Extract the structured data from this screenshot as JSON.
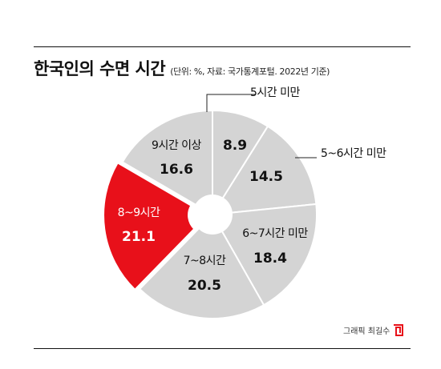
{
  "title": "한국인의 수면 시간",
  "subtitle": "(단위: %, 자료: 국가통계포털. 2022년 기준)",
  "credit": "그래픽 최길수",
  "colors": {
    "slice_default": "#d4d4d4",
    "slice_highlight": "#e8101a",
    "separator": "#ffffff",
    "leader": "#222222",
    "logo": "#e8101a"
  },
  "chart_data": {
    "type": "pie",
    "style": "donut",
    "start": "12 o'clock",
    "direction": "clockwise",
    "unit": "%",
    "slices": [
      {
        "label": "5시간 미만",
        "value": 8.9,
        "highlight": false,
        "label_position": "outside"
      },
      {
        "label": "5~6시간 미만",
        "value": 14.5,
        "highlight": false,
        "label_position": "outside"
      },
      {
        "label": "6~7시간 미만",
        "value": 18.4,
        "highlight": false,
        "label_position": "inside"
      },
      {
        "label": "7~8시간",
        "value": 20.5,
        "highlight": false,
        "label_position": "inside"
      },
      {
        "label": "8~9시간",
        "value": 21.1,
        "highlight": true,
        "label_position": "inside"
      },
      {
        "label": "9시간 이상",
        "value": 16.6,
        "highlight": false,
        "label_position": "inside"
      }
    ]
  }
}
